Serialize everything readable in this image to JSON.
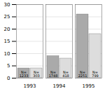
{
  "chart_data": {
    "type": "bar",
    "categories": [
      "1993",
      "1994",
      "1995"
    ],
    "series": [
      {
        "color": "#aaaaaa",
        "values": [
          4,
          9,
          26
        ],
        "n_labels": [
          [
            "N=",
            "1233"
          ],
          [
            "N=",
            "1748"
          ],
          [
            "N=",
            "2251"
          ]
        ]
      },
      {
        "color": "#dddddd",
        "values": [
          4,
          8,
          18
        ],
        "n_labels": [
          [
            "N=",
            "303"
          ],
          [
            "N=",
            "418"
          ],
          [
            "N=",
            "799"
          ]
        ]
      }
    ],
    "ylim": [
      0,
      30
    ],
    "yticks": [
      0,
      5,
      10,
      15,
      20,
      25,
      30
    ],
    "grid": true
  }
}
